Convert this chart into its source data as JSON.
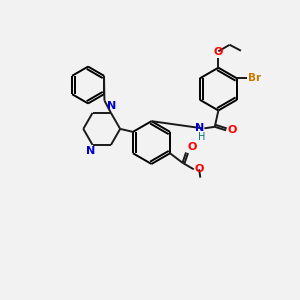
{
  "bg_color": "#f2f2f2",
  "bond_color": "#1a1a1a",
  "N_color": "#0000cc",
  "O_color": "#ff0000",
  "Br_color": "#cc7700",
  "H_color": "#007777",
  "line_width": 1.4,
  "fig_w": 3.0,
  "fig_h": 3.0,
  "dpi": 100,
  "xlim": [
    0,
    10
  ],
  "ylim": [
    0,
    10
  ]
}
